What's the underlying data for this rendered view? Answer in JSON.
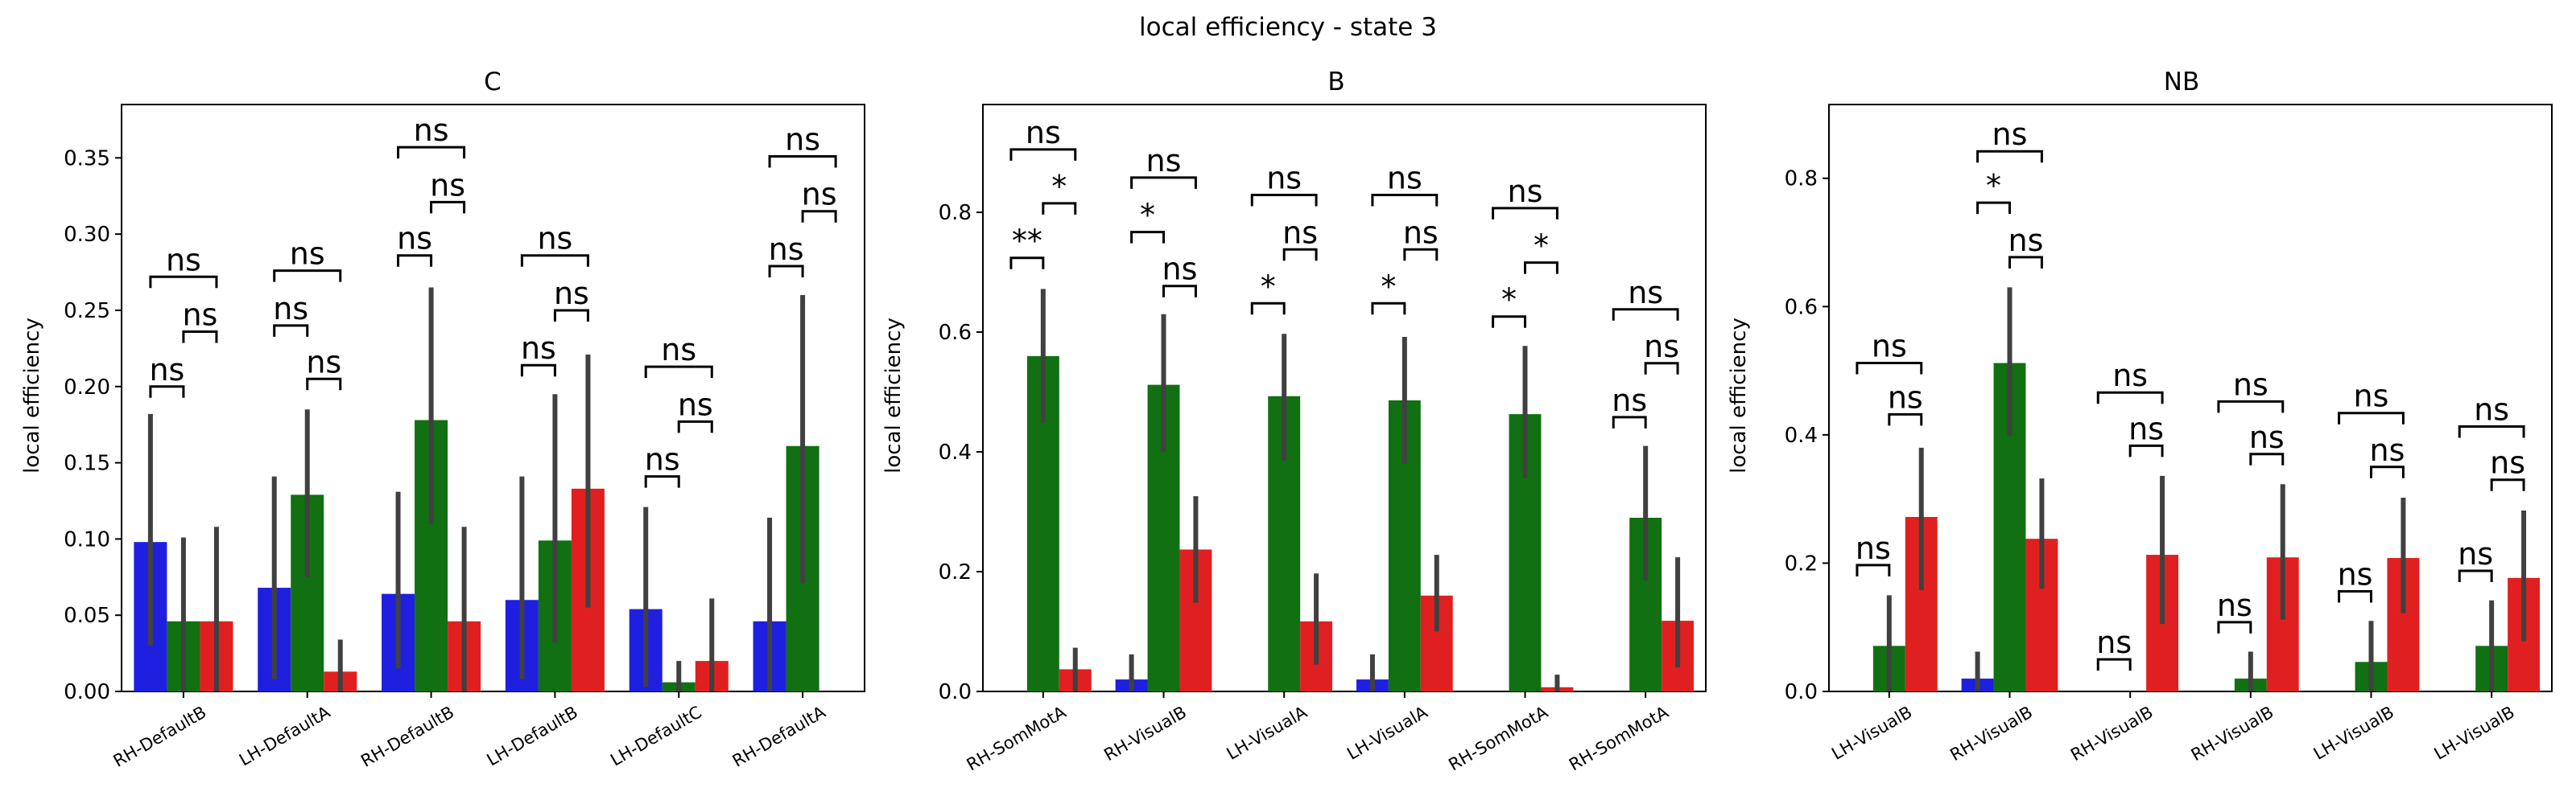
{
  "figure_title": "local efficiency - state 3",
  "colors": {
    "blue": "#1f1fe0",
    "green": "#117011",
    "red": "#e02020",
    "errbar": "#404040"
  },
  "chart_data": [
    {
      "type": "bar",
      "title": "C",
      "ylabel": "local efficiency",
      "xlabel": "",
      "ylim": [
        0,
        0.385
      ],
      "yticks": [
        "0.00",
        "0.05",
        "0.10",
        "0.15",
        "0.20",
        "0.25",
        "0.30",
        "0.35"
      ],
      "ytick_values": [
        0,
        0.05,
        0.1,
        0.15,
        0.2,
        0.25,
        0.3,
        0.35
      ],
      "categories": [
        "RH-DefaultB",
        "LH-DefaultA",
        "RH-DefaultB",
        "LH-DefaultB",
        "LH-DefaultC",
        "RH-DefaultA"
      ],
      "series": [
        {
          "color": "blue",
          "values": [
            0.098,
            0.068,
            0.064,
            0.06,
            0.054,
            0.046
          ],
          "err_low": [
            0.03,
            0.008,
            0.015,
            0.008,
            0.003,
            0.0
          ],
          "err_high": [
            0.182,
            0.141,
            0.131,
            0.141,
            0.121,
            0.114
          ]
        },
        {
          "color": "green",
          "values": [
            0.046,
            0.129,
            0.178,
            0.099,
            0.006,
            0.161
          ],
          "err_low": [
            0.0,
            0.075,
            0.11,
            0.032,
            0.0,
            0.071
          ],
          "err_high": [
            0.101,
            0.185,
            0.265,
            0.195,
            0.02,
            0.26
          ]
        },
        {
          "color": "red",
          "values": [
            0.046,
            0.013,
            0.046,
            0.133,
            0.02,
            0.0
          ],
          "err_low": [
            0.0,
            0.0,
            0.0,
            0.055,
            0.0,
            0.0
          ],
          "err_high": [
            0.108,
            0.034,
            0.108,
            0.221,
            0.061,
            0.0
          ]
        }
      ],
      "annotations": [
        {
          "cat": 0,
          "from": 0,
          "to": 1,
          "y": 0.2,
          "label": "ns"
        },
        {
          "cat": 0,
          "from": 1,
          "to": 2,
          "y": 0.236,
          "label": "ns"
        },
        {
          "cat": 0,
          "from": 0,
          "to": 2,
          "y": 0.272,
          "label": "ns"
        },
        {
          "cat": 1,
          "from": 0,
          "to": 1,
          "y": 0.24,
          "label": "ns"
        },
        {
          "cat": 1,
          "from": 1,
          "to": 2,
          "y": 0.205,
          "label": "ns"
        },
        {
          "cat": 1,
          "from": 0,
          "to": 2,
          "y": 0.276,
          "label": "ns"
        },
        {
          "cat": 2,
          "from": 0,
          "to": 1,
          "y": 0.286,
          "label": "ns"
        },
        {
          "cat": 2,
          "from": 1,
          "to": 2,
          "y": 0.321,
          "label": "ns"
        },
        {
          "cat": 2,
          "from": 0,
          "to": 2,
          "y": 0.357,
          "label": "ns"
        },
        {
          "cat": 3,
          "from": 0,
          "to": 1,
          "y": 0.214,
          "label": "ns"
        },
        {
          "cat": 3,
          "from": 1,
          "to": 2,
          "y": 0.25,
          "label": "ns"
        },
        {
          "cat": 3,
          "from": 0,
          "to": 2,
          "y": 0.286,
          "label": "ns"
        },
        {
          "cat": 4,
          "from": 0,
          "to": 1,
          "y": 0.141,
          "label": "ns"
        },
        {
          "cat": 4,
          "from": 1,
          "to": 2,
          "y": 0.177,
          "label": "ns"
        },
        {
          "cat": 4,
          "from": 0,
          "to": 2,
          "y": 0.213,
          "label": "ns"
        },
        {
          "cat": 5,
          "from": 0,
          "to": 1,
          "y": 0.279,
          "label": "ns"
        },
        {
          "cat": 5,
          "from": 1,
          "to": 2,
          "y": 0.315,
          "label": "ns"
        },
        {
          "cat": 5,
          "from": 0,
          "to": 2,
          "y": 0.351,
          "label": "ns"
        }
      ]
    },
    {
      "type": "bar",
      "title": "B",
      "ylabel": "local efficiency",
      "xlabel": "",
      "ylim": [
        0,
        0.98
      ],
      "yticks": [
        "0.0",
        "0.2",
        "0.4",
        "0.6",
        "0.8"
      ],
      "ytick_values": [
        0,
        0.2,
        0.4,
        0.6,
        0.8
      ],
      "categories": [
        "RH-SomMotA",
        "RH-VisualB",
        "LH-VisualA",
        "LH-VisualA",
        "RH-SomMotA",
        "RH-SomMotA"
      ],
      "series": [
        {
          "color": "blue",
          "values": [
            0.0,
            0.02,
            0.0,
            0.02,
            0.0,
            0.0
          ],
          "err_low": [
            0,
            0,
            0,
            0,
            0,
            0
          ],
          "err_high": [
            0,
            0.062,
            0,
            0.062,
            0,
            0
          ]
        },
        {
          "color": "green",
          "values": [
            0.56,
            0.512,
            0.493,
            0.486,
            0.463,
            0.29
          ],
          "err_low": [
            0.448,
            0.4,
            0.385,
            0.38,
            0.356,
            0.185
          ],
          "err_high": [
            0.672,
            0.63,
            0.597,
            0.592,
            0.577,
            0.41
          ]
        },
        {
          "color": "red",
          "values": [
            0.037,
            0.237,
            0.117,
            0.16,
            0.007,
            0.118
          ],
          "err_low": [
            0.0,
            0.148,
            0.045,
            0.1,
            0.0,
            0.04
          ],
          "err_high": [
            0.073,
            0.326,
            0.197,
            0.228,
            0.028,
            0.224
          ]
        }
      ],
      "annotations": [
        {
          "cat": 0,
          "from": 0,
          "to": 1,
          "y": 0.724,
          "label": "**"
        },
        {
          "cat": 0,
          "from": 1,
          "to": 2,
          "y": 0.815,
          "label": "*"
        },
        {
          "cat": 0,
          "from": 0,
          "to": 2,
          "y": 0.905,
          "label": "ns"
        },
        {
          "cat": 1,
          "from": 0,
          "to": 1,
          "y": 0.767,
          "label": "*"
        },
        {
          "cat": 1,
          "from": 1,
          "to": 2,
          "y": 0.677,
          "label": "ns"
        },
        {
          "cat": 1,
          "from": 0,
          "to": 2,
          "y": 0.858,
          "label": "ns"
        },
        {
          "cat": 2,
          "from": 0,
          "to": 1,
          "y": 0.648,
          "label": "*"
        },
        {
          "cat": 2,
          "from": 1,
          "to": 2,
          "y": 0.738,
          "label": "ns"
        },
        {
          "cat": 2,
          "from": 0,
          "to": 2,
          "y": 0.829,
          "label": "ns"
        },
        {
          "cat": 3,
          "from": 0,
          "to": 1,
          "y": 0.648,
          "label": "*"
        },
        {
          "cat": 3,
          "from": 1,
          "to": 2,
          "y": 0.738,
          "label": "ns"
        },
        {
          "cat": 3,
          "from": 0,
          "to": 2,
          "y": 0.829,
          "label": "ns"
        },
        {
          "cat": 4,
          "from": 0,
          "to": 1,
          "y": 0.626,
          "label": "*"
        },
        {
          "cat": 4,
          "from": 1,
          "to": 2,
          "y": 0.716,
          "label": "*"
        },
        {
          "cat": 4,
          "from": 0,
          "to": 2,
          "y": 0.807,
          "label": "ns"
        },
        {
          "cat": 5,
          "from": 0,
          "to": 1,
          "y": 0.458,
          "label": "ns"
        },
        {
          "cat": 5,
          "from": 1,
          "to": 2,
          "y": 0.548,
          "label": "ns"
        },
        {
          "cat": 5,
          "from": 0,
          "to": 2,
          "y": 0.638,
          "label": "ns"
        }
      ]
    },
    {
      "type": "bar",
      "title": "NB",
      "ylabel": "local efficiency",
      "xlabel": "",
      "ylim": [
        0,
        0.915
      ],
      "yticks": [
        "0.0",
        "0.2",
        "0.4",
        "0.6",
        "0.8"
      ],
      "ytick_values": [
        0,
        0.2,
        0.4,
        0.6,
        0.8
      ],
      "categories": [
        "LH-VisualB",
        "RH-VisualB",
        "RH-VisualB",
        "RH-VisualB",
        "LH-VisualB",
        "LH-VisualB"
      ],
      "series": [
        {
          "color": "blue",
          "values": [
            0.0,
            0.02,
            0.0,
            0.0,
            0.0,
            0.0
          ],
          "err_low": [
            0,
            0,
            0,
            0,
            0,
            0
          ],
          "err_high": [
            0,
            0.062,
            0,
            0,
            0,
            0
          ]
        },
        {
          "color": "green",
          "values": [
            0.071,
            0.512,
            0.0,
            0.02,
            0.046,
            0.071
          ],
          "err_low": [
            0.0,
            0.398,
            0,
            0.0,
            0.0,
            0.0
          ],
          "err_high": [
            0.15,
            0.63,
            0,
            0.062,
            0.11,
            0.142
          ]
        },
        {
          "color": "red",
          "values": [
            0.272,
            0.238,
            0.213,
            0.209,
            0.208,
            0.177
          ],
          "err_low": [
            0.158,
            0.16,
            0.105,
            0.112,
            0.122,
            0.078
          ],
          "err_high": [
            0.38,
            0.332,
            0.336,
            0.323,
            0.302,
            0.282
          ]
        }
      ],
      "annotations": [
        {
          "cat": 0,
          "from": 0,
          "to": 1,
          "y": 0.197,
          "label": "ns"
        },
        {
          "cat": 0,
          "from": 1,
          "to": 2,
          "y": 0.432,
          "label": "ns"
        },
        {
          "cat": 0,
          "from": 0,
          "to": 2,
          "y": 0.512,
          "label": "ns"
        },
        {
          "cat": 1,
          "from": 0,
          "to": 1,
          "y": 0.762,
          "label": "*"
        },
        {
          "cat": 1,
          "from": 1,
          "to": 2,
          "y": 0.677,
          "label": "ns"
        },
        {
          "cat": 1,
          "from": 0,
          "to": 2,
          "y": 0.842,
          "label": "ns"
        },
        {
          "cat": 2,
          "from": 0,
          "to": 1,
          "y": 0.05,
          "label": "ns"
        },
        {
          "cat": 2,
          "from": 1,
          "to": 2,
          "y": 0.383,
          "label": "ns"
        },
        {
          "cat": 2,
          "from": 0,
          "to": 2,
          "y": 0.466,
          "label": "ns"
        },
        {
          "cat": 3,
          "from": 0,
          "to": 1,
          "y": 0.108,
          "label": "ns"
        },
        {
          "cat": 3,
          "from": 1,
          "to": 2,
          "y": 0.37,
          "label": "ns"
        },
        {
          "cat": 3,
          "from": 0,
          "to": 2,
          "y": 0.452,
          "label": "ns"
        },
        {
          "cat": 4,
          "from": 0,
          "to": 1,
          "y": 0.156,
          "label": "ns"
        },
        {
          "cat": 4,
          "from": 1,
          "to": 2,
          "y": 0.35,
          "label": "ns"
        },
        {
          "cat": 4,
          "from": 0,
          "to": 2,
          "y": 0.434,
          "label": "ns"
        },
        {
          "cat": 5,
          "from": 0,
          "to": 1,
          "y": 0.188,
          "label": "ns"
        },
        {
          "cat": 5,
          "from": 1,
          "to": 2,
          "y": 0.33,
          "label": "ns"
        },
        {
          "cat": 5,
          "from": 0,
          "to": 2,
          "y": 0.413,
          "label": "ns"
        }
      ]
    }
  ]
}
